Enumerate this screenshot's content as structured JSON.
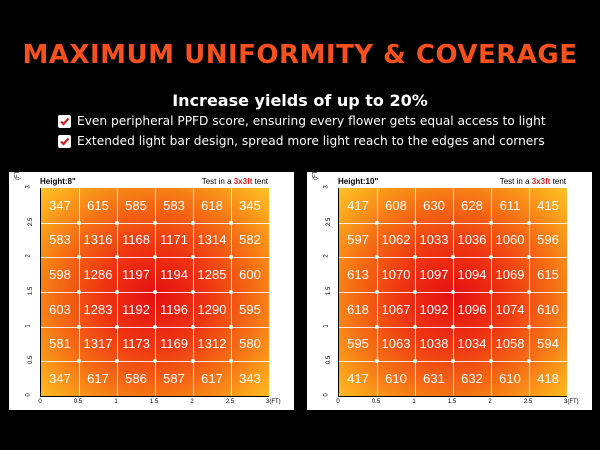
{
  "headline": "MAXIMUM UNIFORMITY & COVERAGE",
  "subheadline": "Increase yields of up to 20%",
  "bullets": [
    {
      "icon": "checkbox-icon",
      "text": "Even peripheral PPFD score, ensuring every flower gets equal access to light"
    },
    {
      "icon": "checkbox-icon",
      "text": "Extended light bar design, spread more light reach to the edges and corners"
    }
  ],
  "colors": {
    "headline": "#f5501d",
    "highlight": "#e02020",
    "heat_center": "#e40f10",
    "heat_edge": "#ffc327"
  },
  "panels": [
    {
      "title": "Height:8\"",
      "test_prefix": "Test in a ",
      "test_highlight": "3x3ft",
      "test_suffix": " tent",
      "y_unit": "(FT)",
      "x_unit": "3(FT)",
      "x_ticks": [
        "0",
        "0.5",
        "1",
        "1.5",
        "2",
        "2.5"
      ],
      "y_ticks": [
        "0",
        "0.5",
        "1",
        "1.5",
        "2",
        "2.5",
        "3"
      ],
      "grid": [
        [
          347,
          615,
          585,
          583,
          618,
          345
        ],
        [
          583,
          1316,
          1168,
          1171,
          1314,
          582
        ],
        [
          598,
          1286,
          1197,
          1194,
          1285,
          600
        ],
        [
          603,
          1283,
          1192,
          1196,
          1290,
          595
        ],
        [
          581,
          1317,
          1173,
          1169,
          1312,
          580
        ],
        [
          347,
          617,
          586,
          587,
          617,
          343
        ]
      ]
    },
    {
      "title": "Height:10\"",
      "test_prefix": "Test in a ",
      "test_highlight": "3x3ft",
      "test_suffix": " tent",
      "y_unit": "(FT)",
      "x_unit": "3(FT)",
      "x_ticks": [
        "0",
        "0.5",
        "1",
        "1.5",
        "2",
        "2.5"
      ],
      "y_ticks": [
        "0",
        "0.5",
        "1",
        "1.5",
        "2",
        "2.5",
        "3"
      ],
      "grid": [
        [
          417,
          608,
          630,
          628,
          611,
          415
        ],
        [
          597,
          1062,
          1033,
          1036,
          1060,
          596
        ],
        [
          613,
          1070,
          1097,
          1094,
          1069,
          615
        ],
        [
          618,
          1067,
          1092,
          1096,
          1074,
          610
        ],
        [
          595,
          1063,
          1038,
          1034,
          1058,
          594
        ],
        [
          417,
          610,
          631,
          632,
          610,
          418
        ]
      ]
    }
  ]
}
